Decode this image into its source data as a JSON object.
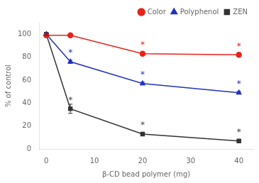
{
  "chart_data": {
    "type": "line",
    "x": [
      0,
      5,
      20,
      40
    ],
    "series": [
      {
        "name": "Color",
        "color": "#e8231a",
        "marker": "circle",
        "values": [
          99,
          99,
          83,
          82
        ],
        "errors": [
          1.0,
          0.8,
          1.2,
          1.2
        ]
      },
      {
        "name": "Polyphenol",
        "color": "#2233bb",
        "marker": "triangle",
        "values": [
          100,
          76,
          57,
          49
        ],
        "errors": [
          0.8,
          1.5,
          1.2,
          1.2
        ]
      },
      {
        "name": "ZEN",
        "color": "#333333",
        "marker": "square",
        "values": [
          100,
          35,
          13,
          7
        ],
        "errors": [
          1.0,
          4.0,
          1.5,
          0.8
        ]
      }
    ],
    "xlabel": "β-CD bead polymer (mg)",
    "ylabel": "% of control",
    "xlim": [
      -1.5,
      43
    ],
    "ylim": [
      0,
      110
    ],
    "xticks": [
      0,
      10,
      20,
      30,
      40
    ],
    "yticks": [
      0,
      20,
      40,
      60,
      80,
      100
    ],
    "grid": false,
    "legend": "upper right",
    "annotations": [
      {
        "text": "*",
        "x": 20,
        "y": 89,
        "color": "#e8231a"
      },
      {
        "text": "*",
        "x": 40,
        "y": 88,
        "color": "#e8231a"
      },
      {
        "text": "*",
        "x": 5,
        "y": 82,
        "color": "#2233bb"
      },
      {
        "text": "*",
        "x": 20,
        "y": 63,
        "color": "#2233bb"
      },
      {
        "text": "*",
        "x": 40,
        "y": 55,
        "color": "#2233bb"
      },
      {
        "text": "*",
        "x": 5,
        "y": 41,
        "color": "#444444"
      },
      {
        "text": "*",
        "x": 20,
        "y": 19,
        "color": "#444444"
      },
      {
        "text": "*",
        "x": 40,
        "y": 13,
        "color": "#444444"
      }
    ]
  }
}
